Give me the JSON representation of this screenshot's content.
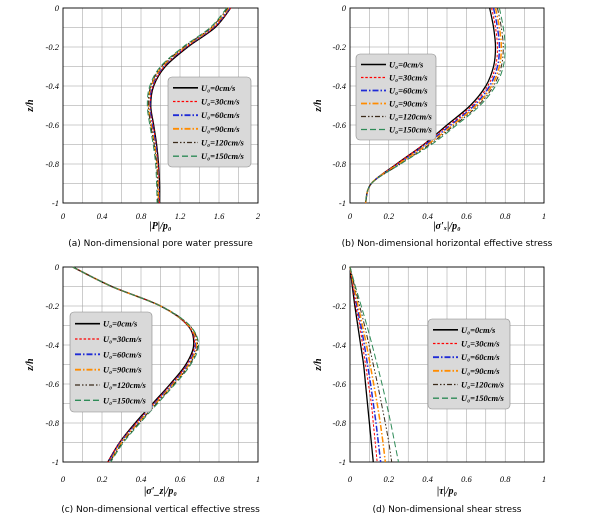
{
  "figure": {
    "colors": {
      "0cm/s": "#000000",
      "30cm/s": "#ff0000",
      "60cm/s": "#1f2bd6",
      "90cm/s": "#ff8c00",
      "120cm/s": "#3a2a1a",
      "150cm/s": "#2e8b57",
      "legend_bg": "#d9d9d9",
      "grid": "#9a9a9a"
    },
    "y_tick_labels": [
      "0",
      "-0.2",
      "-0.4",
      "-0.6",
      "-0.8",
      "-1"
    ]
  },
  "chart_data": [
    {
      "type": "line",
      "caption": "(a) Non-dimensional pore water pressure",
      "xlabel": "|P|/p₀",
      "ylabel": "z/h",
      "xlim": [
        0,
        2
      ],
      "ylim": [
        -1,
        0
      ],
      "x_tick_labels": [
        "0",
        "0.4",
        "0.8",
        "1.2",
        "1.6",
        "2"
      ],
      "legend_placement": "right",
      "series": [
        {
          "name": "U₀=0cm/s",
          "x": [
            1.72,
            1.56,
            1.28,
            1.05,
            0.93,
            0.9,
            0.93,
            0.96,
            0.98,
            0.99,
            0.99
          ],
          "y": [
            0,
            -0.1,
            -0.2,
            -0.3,
            -0.4,
            -0.5,
            -0.6,
            -0.7,
            -0.8,
            -0.9,
            -1
          ]
        },
        {
          "name": "U₀=30cm/s",
          "x": [
            1.72,
            1.55,
            1.27,
            1.04,
            0.925,
            0.895,
            0.925,
            0.955,
            0.975,
            0.985,
            0.99
          ],
          "y": [
            0,
            -0.1,
            -0.2,
            -0.3,
            -0.4,
            -0.5,
            -0.6,
            -0.7,
            -0.8,
            -0.9,
            -1
          ]
        },
        {
          "name": "U₀=60cm/s",
          "x": [
            1.71,
            1.54,
            1.26,
            1.03,
            0.915,
            0.89,
            0.915,
            0.95,
            0.97,
            0.98,
            0.985
          ],
          "y": [
            0,
            -0.1,
            -0.2,
            -0.3,
            -0.4,
            -0.5,
            -0.6,
            -0.7,
            -0.8,
            -0.9,
            -1
          ]
        },
        {
          "name": "U₀=90cm/s",
          "x": [
            1.7,
            1.53,
            1.25,
            1.02,
            0.905,
            0.88,
            0.905,
            0.94,
            0.965,
            0.975,
            0.98
          ],
          "y": [
            0,
            -0.1,
            -0.2,
            -0.3,
            -0.4,
            -0.5,
            -0.6,
            -0.7,
            -0.8,
            -0.9,
            -1
          ]
        },
        {
          "name": "U₀=120cm/s",
          "x": [
            1.69,
            1.52,
            1.24,
            1.01,
            0.9,
            0.875,
            0.9,
            0.935,
            0.96,
            0.97,
            0.975
          ],
          "y": [
            0,
            -0.1,
            -0.2,
            -0.3,
            -0.4,
            -0.5,
            -0.6,
            -0.7,
            -0.8,
            -0.9,
            -1
          ]
        },
        {
          "name": "U₀=150cm/s",
          "x": [
            1.68,
            1.51,
            1.23,
            1.0,
            0.89,
            0.865,
            0.89,
            0.925,
            0.95,
            0.96,
            0.965
          ],
          "y": [
            0,
            -0.1,
            -0.2,
            -0.3,
            -0.4,
            -0.5,
            -0.6,
            -0.7,
            -0.8,
            -0.9,
            -1
          ]
        }
      ]
    },
    {
      "type": "line",
      "caption": "(b) Non-dimensional horizontal effective stress",
      "xlabel": "|σ′ₓ|/p₀",
      "ylabel": "z/h",
      "xlim": [
        0,
        1
      ],
      "ylim": [
        -1,
        0
      ],
      "x_tick_labels": [
        "0",
        "0.2",
        "0.4",
        "0.6",
        "0.8",
        "1"
      ],
      "legend_placement": "left",
      "series": [
        {
          "name": "U₀=0cm/s",
          "x": [
            0.72,
            0.74,
            0.75,
            0.74,
            0.7,
            0.62,
            0.5,
            0.38,
            0.24,
            0.11,
            0.08
          ],
          "y": [
            0,
            -0.1,
            -0.2,
            -0.3,
            -0.4,
            -0.5,
            -0.6,
            -0.7,
            -0.8,
            -0.9,
            -1
          ]
        },
        {
          "name": "U₀=30cm/s",
          "x": [
            0.73,
            0.75,
            0.76,
            0.75,
            0.71,
            0.63,
            0.51,
            0.38,
            0.24,
            0.11,
            0.08
          ],
          "y": [
            0,
            -0.1,
            -0.2,
            -0.3,
            -0.4,
            -0.5,
            -0.6,
            -0.7,
            -0.8,
            -0.9,
            -1
          ]
        },
        {
          "name": "U₀=60cm/s",
          "x": [
            0.74,
            0.76,
            0.77,
            0.76,
            0.72,
            0.64,
            0.52,
            0.39,
            0.25,
            0.11,
            0.08
          ],
          "y": [
            0,
            -0.1,
            -0.2,
            -0.3,
            -0.4,
            -0.5,
            -0.6,
            -0.7,
            -0.8,
            -0.9,
            -1
          ]
        },
        {
          "name": "U₀=90cm/s",
          "x": [
            0.75,
            0.77,
            0.78,
            0.77,
            0.73,
            0.65,
            0.53,
            0.4,
            0.25,
            0.11,
            0.08
          ],
          "y": [
            0,
            -0.1,
            -0.2,
            -0.3,
            -0.4,
            -0.5,
            -0.6,
            -0.7,
            -0.8,
            -0.9,
            -1
          ]
        },
        {
          "name": "U₀=120cm/s",
          "x": [
            0.76,
            0.78,
            0.79,
            0.78,
            0.74,
            0.66,
            0.54,
            0.41,
            0.26,
            0.11,
            0.08
          ],
          "y": [
            0,
            -0.1,
            -0.2,
            -0.3,
            -0.4,
            -0.5,
            -0.6,
            -0.7,
            -0.8,
            -0.9,
            -1
          ]
        },
        {
          "name": "U₀=150cm/s",
          "x": [
            0.77,
            0.79,
            0.8,
            0.79,
            0.75,
            0.67,
            0.55,
            0.42,
            0.26,
            0.11,
            0.08
          ],
          "y": [
            0,
            -0.1,
            -0.2,
            -0.3,
            -0.4,
            -0.5,
            -0.6,
            -0.7,
            -0.8,
            -0.9,
            -1
          ]
        }
      ]
    },
    {
      "type": "line",
      "caption": "(c) Non-dimensional vertical effective stress",
      "xlabel": "|σ′_z|/p₀",
      "ylabel": "z/h",
      "xlim": [
        0,
        1
      ],
      "ylim": [
        -1,
        0
      ],
      "x_tick_labels": [
        "0",
        "0.2",
        "0.4",
        "0.6",
        "0.8",
        "1"
      ],
      "legend_placement": "left",
      "series": [
        {
          "name": "U₀=0cm/s",
          "x": [
            0.05,
            0.25,
            0.5,
            0.64,
            0.67,
            0.63,
            0.55,
            0.46,
            0.37,
            0.29,
            0.23
          ],
          "y": [
            0,
            -0.1,
            -0.2,
            -0.3,
            -0.4,
            -0.5,
            -0.6,
            -0.7,
            -0.8,
            -0.9,
            -1
          ]
        },
        {
          "name": "U₀=30cm/s",
          "x": [
            0.05,
            0.25,
            0.5,
            0.64,
            0.675,
            0.635,
            0.555,
            0.465,
            0.375,
            0.29,
            0.23
          ],
          "y": [
            0,
            -0.1,
            -0.2,
            -0.3,
            -0.4,
            -0.5,
            -0.6,
            -0.7,
            -0.8,
            -0.9,
            -1
          ]
        },
        {
          "name": "U₀=60cm/s",
          "x": [
            0.05,
            0.25,
            0.5,
            0.645,
            0.68,
            0.64,
            0.56,
            0.47,
            0.38,
            0.295,
            0.235
          ],
          "y": [
            0,
            -0.1,
            -0.2,
            -0.3,
            -0.4,
            -0.5,
            -0.6,
            -0.7,
            -0.8,
            -0.9,
            -1
          ]
        },
        {
          "name": "U₀=90cm/s",
          "x": [
            0.05,
            0.25,
            0.5,
            0.645,
            0.685,
            0.645,
            0.565,
            0.475,
            0.385,
            0.3,
            0.24
          ],
          "y": [
            0,
            -0.1,
            -0.2,
            -0.3,
            -0.4,
            -0.5,
            -0.6,
            -0.7,
            -0.8,
            -0.9,
            -1
          ]
        },
        {
          "name": "U₀=120cm/s",
          "x": [
            0.05,
            0.25,
            0.5,
            0.65,
            0.69,
            0.65,
            0.57,
            0.48,
            0.39,
            0.305,
            0.24
          ],
          "y": [
            0,
            -0.1,
            -0.2,
            -0.3,
            -0.4,
            -0.5,
            -0.6,
            -0.7,
            -0.8,
            -0.9,
            -1
          ]
        },
        {
          "name": "U₀=150cm/s",
          "x": [
            0.05,
            0.25,
            0.5,
            0.65,
            0.695,
            0.655,
            0.575,
            0.485,
            0.395,
            0.31,
            0.245
          ],
          "y": [
            0,
            -0.1,
            -0.2,
            -0.3,
            -0.4,
            -0.5,
            -0.6,
            -0.7,
            -0.8,
            -0.9,
            -1
          ]
        }
      ]
    },
    {
      "type": "line",
      "caption": "(d) Non-dimensional shear stress",
      "xlabel": "|τ|/p₀",
      "ylabel": "z/h",
      "xlim": [
        0,
        1
      ],
      "ylim": [
        -1,
        0
      ],
      "x_tick_labels": [
        "0",
        "0.2",
        "0.4",
        "0.6",
        "0.8",
        "1"
      ],
      "legend_placement": "right",
      "series": [
        {
          "name": "U₀=0cm/s",
          "x": [
            0.0,
            0.012,
            0.025,
            0.04,
            0.055,
            0.07,
            0.08,
            0.09,
            0.1,
            0.11,
            0.12
          ],
          "y": [
            0,
            -0.1,
            -0.2,
            -0.3,
            -0.4,
            -0.5,
            -0.6,
            -0.7,
            -0.8,
            -0.9,
            -1
          ]
        },
        {
          "name": "U₀=30cm/s",
          "x": [
            0.0,
            0.015,
            0.03,
            0.05,
            0.065,
            0.08,
            0.095,
            0.11,
            0.12,
            0.13,
            0.14
          ],
          "y": [
            0,
            -0.1,
            -0.2,
            -0.3,
            -0.4,
            -0.5,
            -0.6,
            -0.7,
            -0.8,
            -0.9,
            -1
          ]
        },
        {
          "name": "U₀=60cm/s",
          "x": [
            0.0,
            0.018,
            0.036,
            0.056,
            0.074,
            0.09,
            0.106,
            0.12,
            0.134,
            0.146,
            0.158
          ],
          "y": [
            0,
            -0.1,
            -0.2,
            -0.3,
            -0.4,
            -0.5,
            -0.6,
            -0.7,
            -0.8,
            -0.9,
            -1
          ]
        },
        {
          "name": "U₀=90cm/s",
          "x": [
            0.0,
            0.02,
            0.042,
            0.064,
            0.085,
            0.104,
            0.122,
            0.14,
            0.156,
            0.17,
            0.182
          ],
          "y": [
            0,
            -0.1,
            -0.2,
            -0.3,
            -0.4,
            -0.5,
            -0.6,
            -0.7,
            -0.8,
            -0.9,
            -1
          ]
        },
        {
          "name": "U₀=120cm/s",
          "x": [
            0.0,
            0.024,
            0.05,
            0.075,
            0.098,
            0.12,
            0.142,
            0.162,
            0.182,
            0.2,
            0.215
          ],
          "y": [
            0,
            -0.1,
            -0.2,
            -0.3,
            -0.4,
            -0.5,
            -0.6,
            -0.7,
            -0.8,
            -0.9,
            -1
          ]
        },
        {
          "name": "U₀=150cm/s",
          "x": [
            0.0,
            0.028,
            0.058,
            0.087,
            0.114,
            0.14,
            0.165,
            0.188,
            0.21,
            0.23,
            0.25
          ],
          "y": [
            0,
            -0.1,
            -0.2,
            -0.3,
            -0.4,
            -0.5,
            -0.6,
            -0.7,
            -0.8,
            -0.9,
            -1
          ]
        }
      ]
    }
  ]
}
